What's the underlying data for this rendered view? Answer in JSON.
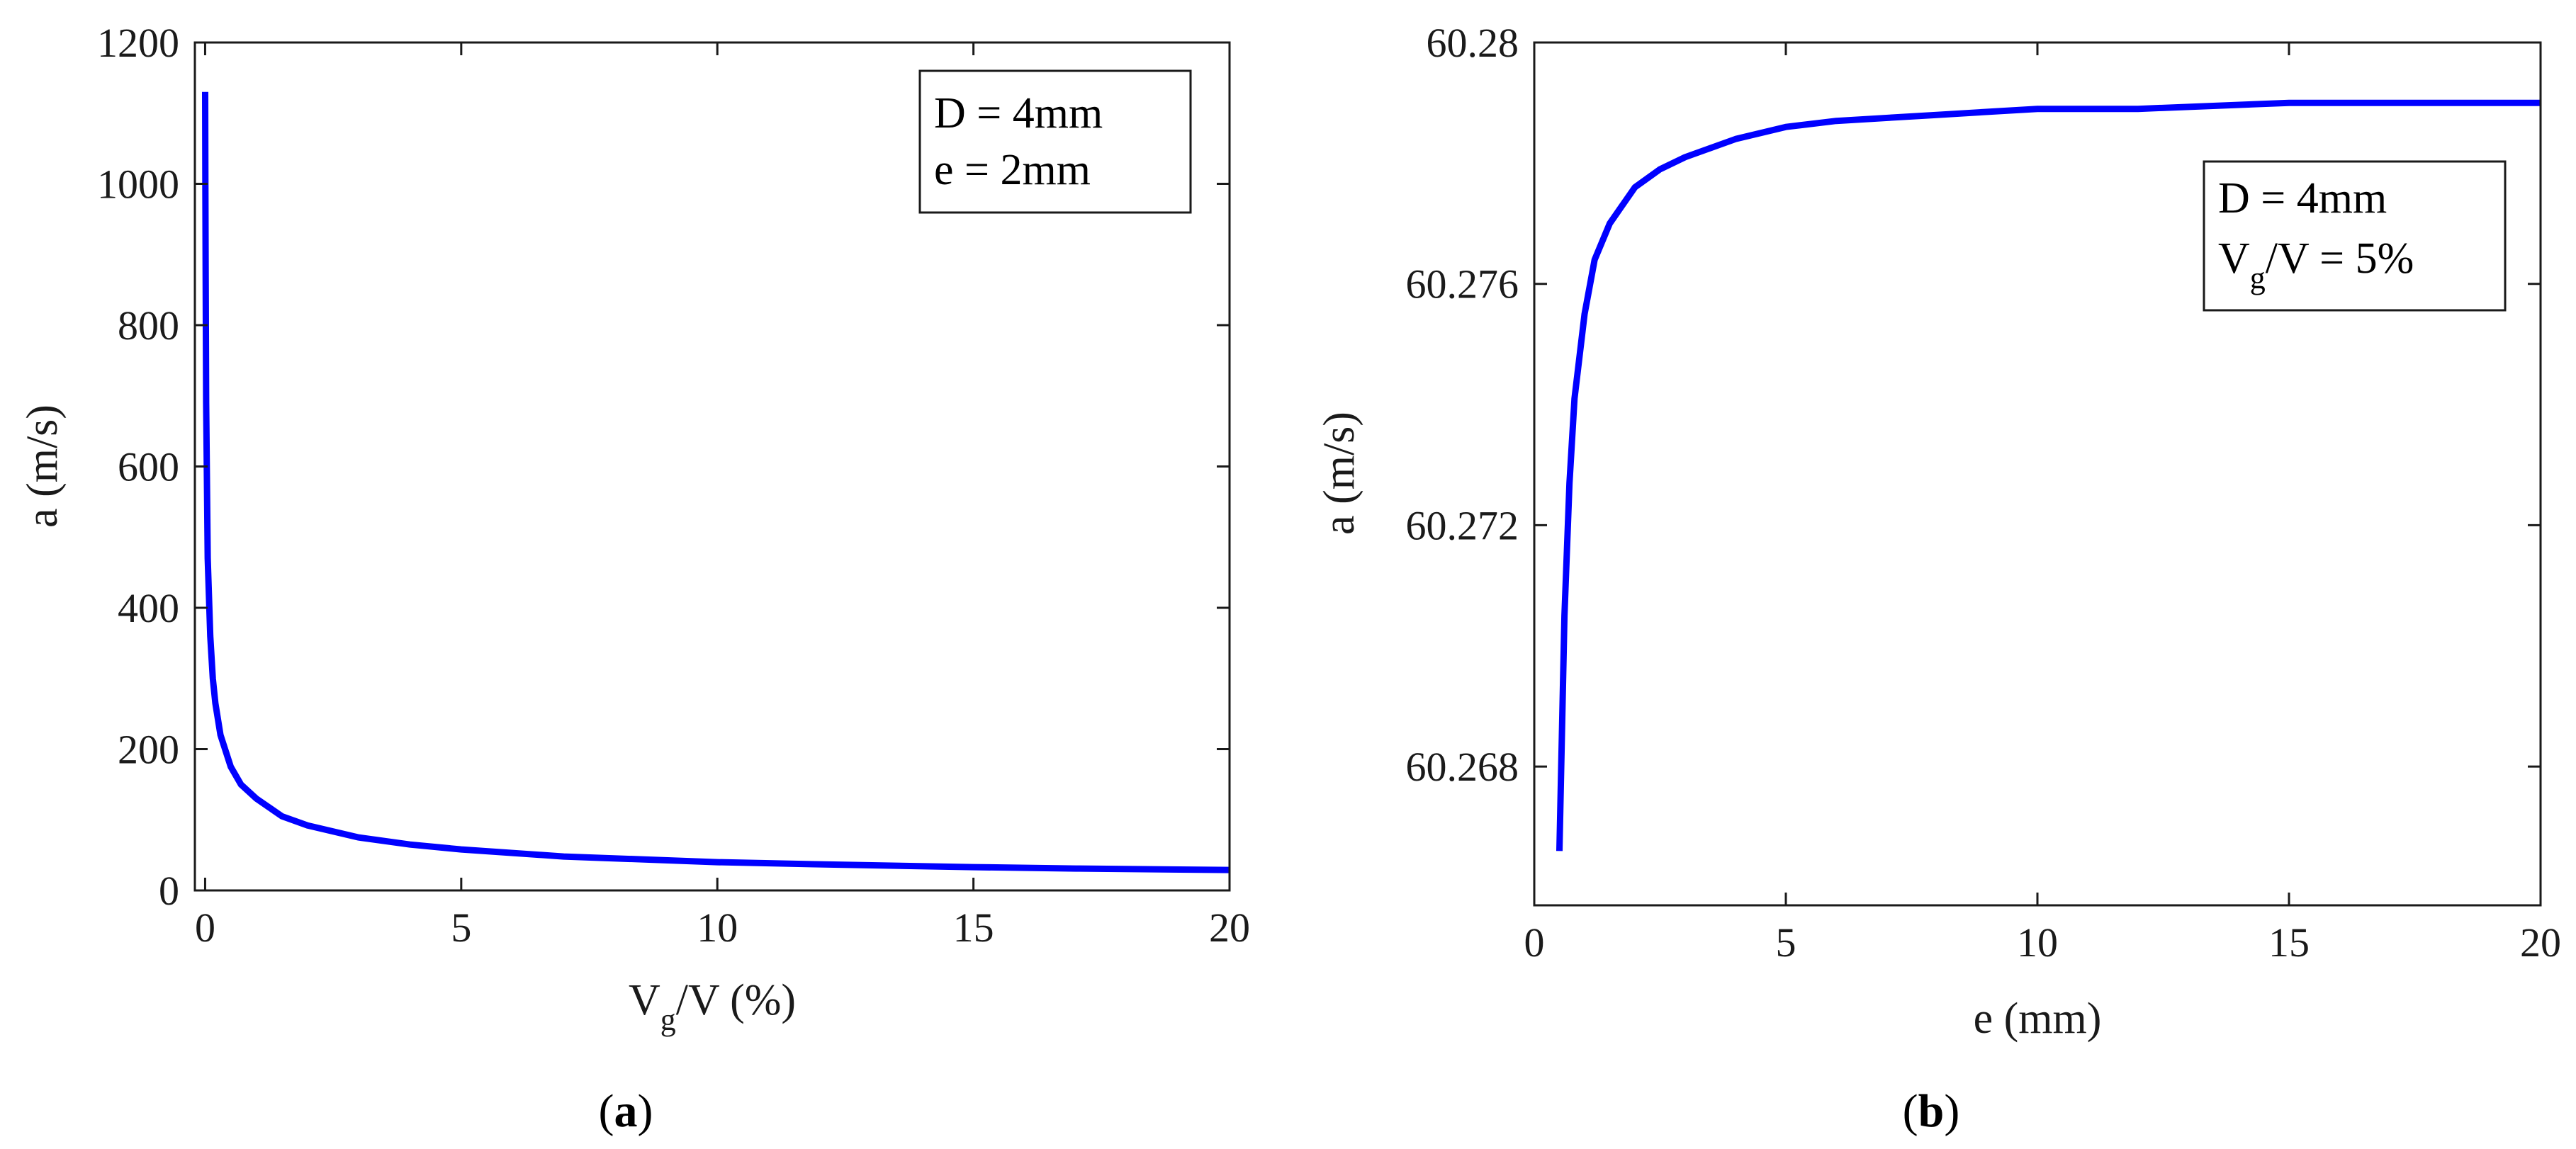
{
  "chart_data": [
    {
      "type": "line",
      "caption": "a",
      "xlabel": {
        "main": "V",
        "sub": "g",
        "rest": "/V (%)"
      },
      "ylabel": "a (m/s)",
      "xlim": [
        -0.2,
        20
      ],
      "ylim": [
        0,
        1200
      ],
      "xticks": [
        "0",
        "5",
        "10",
        "15",
        "20"
      ],
      "yticks": [
        "0",
        "200",
        "400",
        "600",
        "800",
        "1000",
        "1200"
      ],
      "series": [
        {
          "color": "#0000ff",
          "x": [
            0,
            0.005,
            0.01,
            0.02,
            0.05,
            0.1,
            0.15,
            0.2,
            0.3,
            0.5,
            0.7,
            1,
            1.5,
            2,
            3,
            4,
            5,
            7,
            10,
            12,
            15,
            17,
            20
          ],
          "y": [
            1130,
            1000,
            875,
            690,
            470,
            360,
            300,
            265,
            220,
            175,
            150,
            130,
            105,
            92,
            75,
            65,
            58,
            48,
            40,
            37,
            33,
            31,
            29
          ]
        }
      ],
      "legend": [
        "D = 4mm",
        "e = 2mm"
      ],
      "legend_position": "top-right"
    },
    {
      "type": "line",
      "caption": "b",
      "xlabel": "e (mm)",
      "ylabel": "a (m/s)",
      "xlim": [
        0,
        20
      ],
      "ylim": [
        60.2657,
        60.28
      ],
      "xticks": [
        "0",
        "5",
        "10",
        "15",
        "20"
      ],
      "yticks": [
        "60.268",
        "60.272",
        "60.276",
        "60.28"
      ],
      "series": [
        {
          "color": "#0000ff",
          "x": [
            0.5,
            0.6,
            0.7,
            0.8,
            1,
            1.2,
            1.5,
            2,
            2.5,
            3,
            4,
            5,
            6,
            8,
            10,
            12,
            15,
            17,
            20
          ],
          "y": [
            60.2666,
            60.2705,
            60.2727,
            60.2741,
            60.2755,
            60.2764,
            60.277,
            60.2776,
            60.2779,
            60.2781,
            60.2784,
            60.2786,
            60.2787,
            60.2788,
            60.2789,
            60.2789,
            60.279,
            60.279,
            60.279
          ]
        }
      ],
      "legend": [
        "D = 4mm",
        {
          "main": "V",
          "sub": "g",
          "rest": "/V = 5%"
        }
      ],
      "legend_position": "top-right"
    }
  ]
}
